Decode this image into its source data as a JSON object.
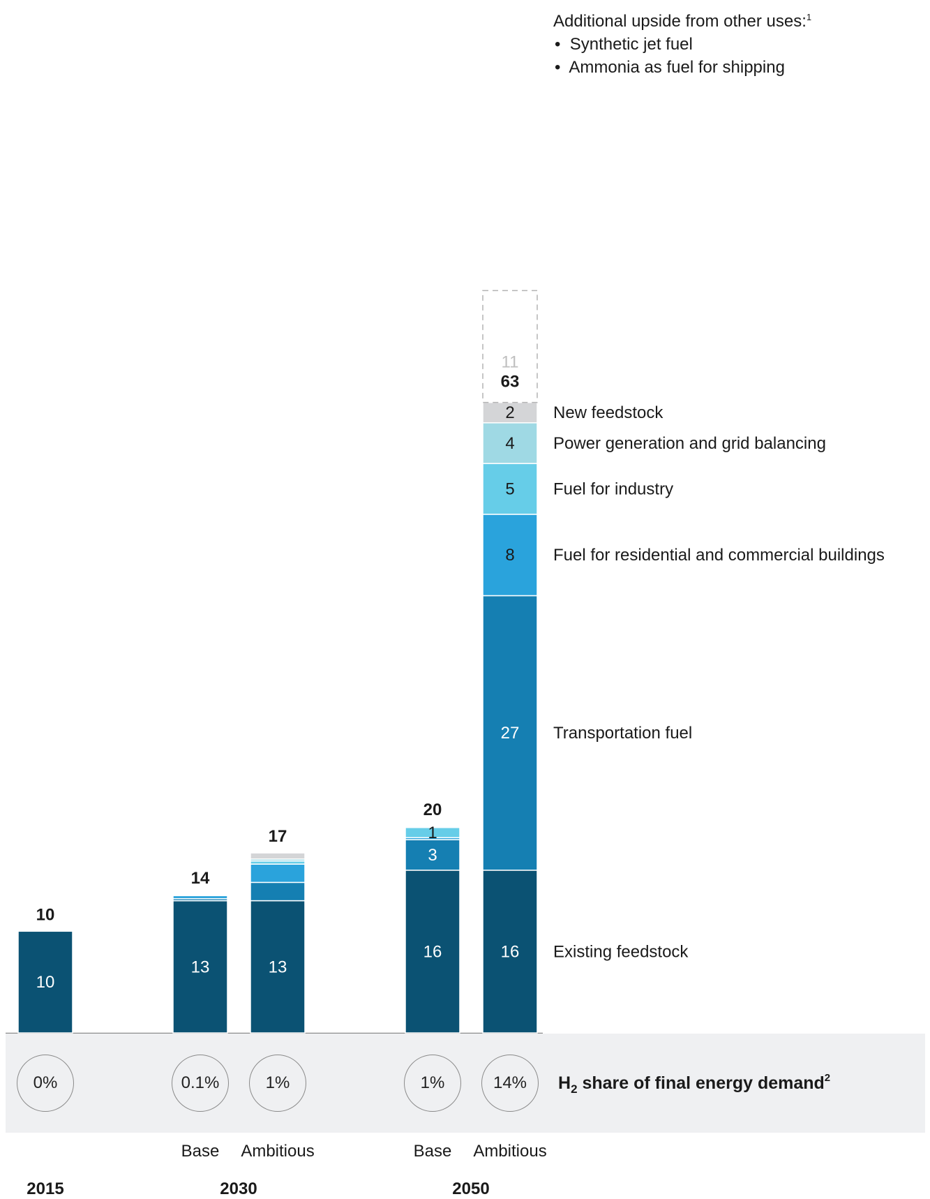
{
  "chart_data": {
    "type": "bar",
    "stacked": true,
    "unit": "",
    "year_groups": [
      "2015",
      "2030",
      "2050"
    ],
    "categories": [
      "2015",
      "Base",
      "Ambitious",
      "Base",
      "Ambitious"
    ],
    "series": [
      {
        "name": "Existing feedstock",
        "color": "#0b5273",
        "values": [
          10,
          13,
          13,
          16,
          16
        ]
      },
      {
        "name": "Transportation fuel",
        "color": "#157fb2",
        "values": [
          0,
          0.2,
          1.8,
          3,
          27
        ]
      },
      {
        "name": "Fuel for residential and commercial buildings",
        "color": "#2aa3dc",
        "values": [
          0,
          0.3,
          1.8,
          0.2,
          8
        ]
      },
      {
        "name": "Fuel for industry",
        "color": "#66cde8",
        "values": [
          0,
          0.1,
          0.3,
          1,
          5
        ]
      },
      {
        "name": "Power generation and grid balancing",
        "color": "#9fd9e4",
        "values": [
          0,
          0,
          0.2,
          0.1,
          4
        ]
      },
      {
        "name": "New feedstock",
        "color": "#d4d5d7",
        "values": [
          0,
          0,
          0.6,
          0,
          2
        ]
      }
    ],
    "segment_labels": [
      {
        "category": 0,
        "series": 0,
        "text": "10"
      },
      {
        "category": 1,
        "series": 0,
        "text": "13"
      },
      {
        "category": 2,
        "series": 0,
        "text": "13"
      },
      {
        "category": 3,
        "series": 0,
        "text": "16"
      },
      {
        "category": 3,
        "series": 1,
        "text": "3"
      },
      {
        "category": 3,
        "series": 3,
        "text": "1"
      },
      {
        "category": 4,
        "series": 0,
        "text": "16"
      },
      {
        "category": 4,
        "series": 1,
        "text": "27"
      },
      {
        "category": 4,
        "series": 2,
        "text": "8"
      },
      {
        "category": 4,
        "series": 3,
        "text": "5"
      },
      {
        "category": 4,
        "series": 4,
        "text": "4"
      },
      {
        "category": 4,
        "series": 5,
        "text": "2"
      }
    ],
    "totals": [
      "10",
      "14",
      "17",
      "20",
      "63"
    ],
    "upside": {
      "category": 4,
      "value": 11,
      "label": "11"
    },
    "upside_note": {
      "heading": "Additional upside from other uses:",
      "marker": "1",
      "bullets": [
        "Synthetic jet fuel",
        "Ammonia as fuel for shipping"
      ]
    },
    "h2_share": {
      "label": "H",
      "label_sub": "2",
      "label_rest": " share of final energy demand",
      "label_marker": "2",
      "values": [
        "0%",
        "0.1%",
        "1%",
        "1%",
        "14%"
      ]
    }
  },
  "colors": {
    "upside_border": "#b3b3b3",
    "upside_text": "#bfbfbf",
    "band": "#eff0f2"
  }
}
